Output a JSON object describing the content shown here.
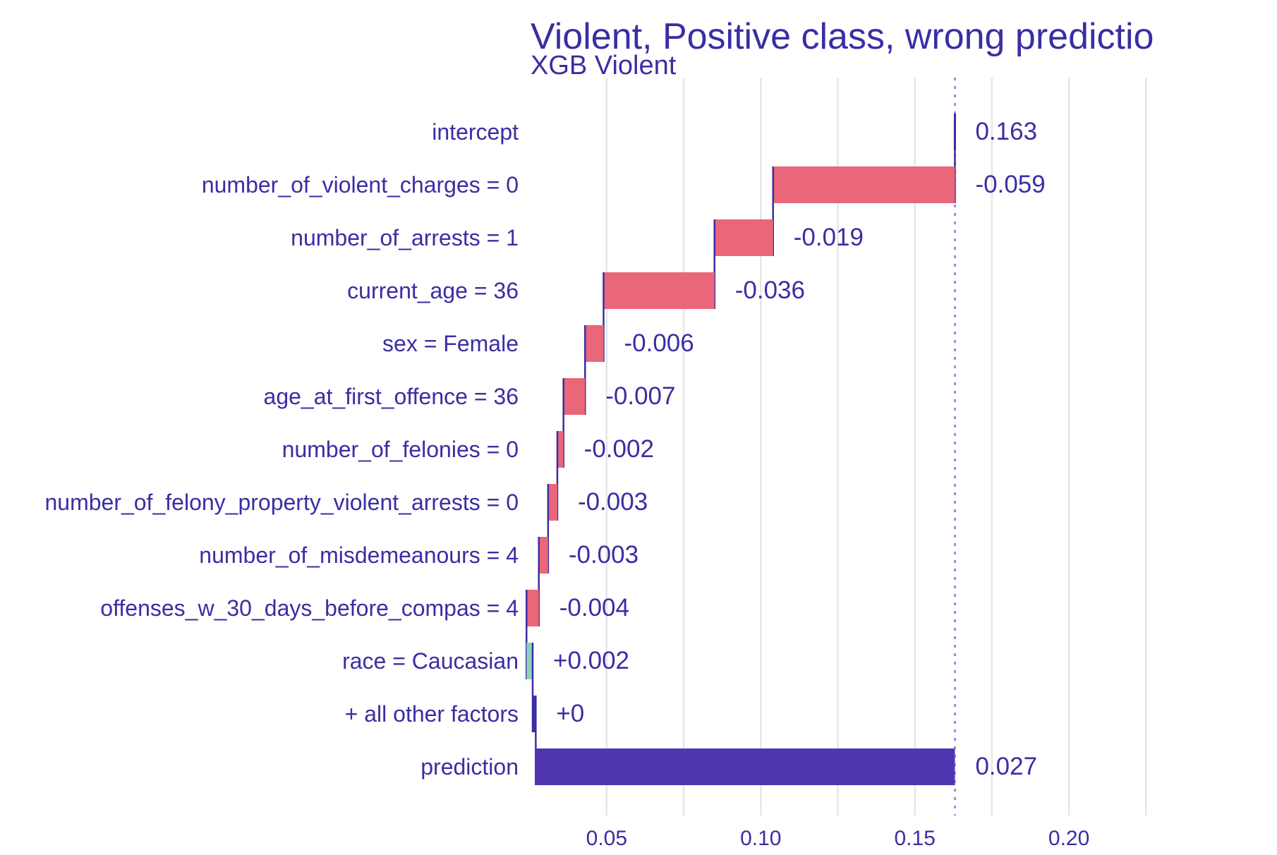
{
  "chart_data": {
    "type": "waterfall",
    "title": "Violent, Positive class, wrong predictio",
    "subtitle": "XGB Violent",
    "xlabel": "",
    "ylabel": "",
    "xlim": [
      0.026,
      0.235
    ],
    "xticks": [
      0.05,
      0.1,
      0.15,
      0.2
    ],
    "xtick_labels": [
      "0.05",
      "0.10",
      "0.15",
      "0.20"
    ],
    "grid": true,
    "baseline": 0.163,
    "bars": [
      {
        "label": "intercept",
        "start": 0.163,
        "end": 0.163,
        "value_label": "0.163",
        "kind": "intercept"
      },
      {
        "label": "number_of_violent_charges = 0",
        "start": 0.163,
        "end": 0.104,
        "value_label": "-0.059",
        "kind": "negative"
      },
      {
        "label": "number_of_arrests = 1",
        "start": 0.104,
        "end": 0.085,
        "value_label": "-0.019",
        "kind": "negative"
      },
      {
        "label": "current_age = 36",
        "start": 0.085,
        "end": 0.049,
        "value_label": "-0.036",
        "kind": "negative"
      },
      {
        "label": "sex = Female",
        "start": 0.049,
        "end": 0.043,
        "value_label": "-0.006",
        "kind": "negative"
      },
      {
        "label": "age_at_first_offence = 36",
        "start": 0.043,
        "end": 0.036,
        "value_label": "-0.007",
        "kind": "negative"
      },
      {
        "label": "number_of_felonies = 0",
        "start": 0.036,
        "end": 0.034,
        "value_label": "-0.002",
        "kind": "negative"
      },
      {
        "label": "number_of_felony_property_violent_arrests = 0",
        "start": 0.034,
        "end": 0.031,
        "value_label": "-0.003",
        "kind": "negative"
      },
      {
        "label": "number_of_misdemeanours = 4",
        "start": 0.031,
        "end": 0.028,
        "value_label": "-0.003",
        "kind": "negative"
      },
      {
        "label": "offenses_w_30_days_before_compas = 4",
        "start": 0.028,
        "end": 0.024,
        "value_label": "-0.004",
        "kind": "negative"
      },
      {
        "label": "race = Caucasian",
        "start": 0.024,
        "end": 0.026,
        "value_label": "+0.002",
        "kind": "positive"
      },
      {
        "label": "+ all other factors",
        "start": 0.026,
        "end": 0.027,
        "value_label": "+0",
        "kind": "other"
      },
      {
        "label": "prediction",
        "start": 0.027,
        "end": 0.163,
        "value_label": "0.027",
        "kind": "prediction"
      }
    ],
    "colors": {
      "negative": "#ea6679",
      "positive": "#8fd1bb",
      "prediction": "#4f36b0",
      "text": "#3a2ea3",
      "grid": "#e6e6e6",
      "connector": "#3a2ea3",
      "baseline": "#9a8fe0"
    }
  }
}
